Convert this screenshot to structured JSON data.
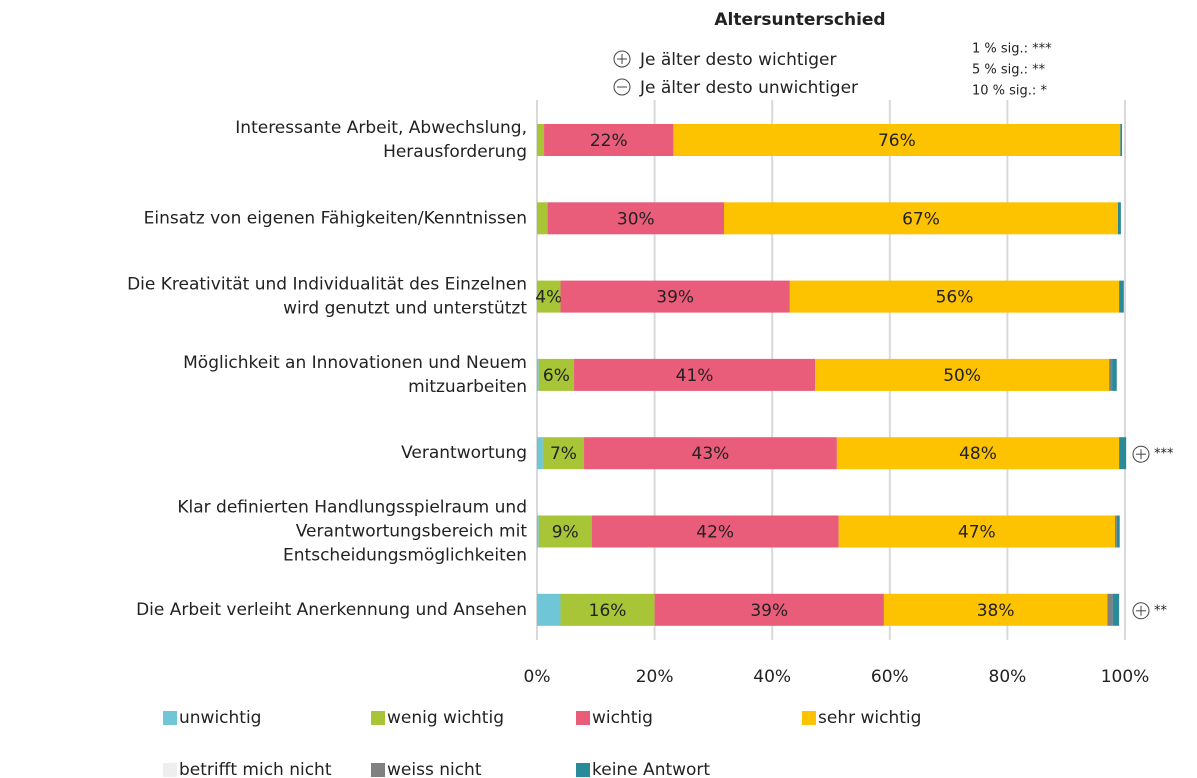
{
  "chart_data": {
    "type": "stacked_bar_horizontal",
    "title": "Altersunterschied",
    "annotations": {
      "plus": "Je älter desto wichtiger",
      "minus": "Je älter desto unwichtiger",
      "sig": [
        "1  % sig.: ***",
        "5  % sig.: **",
        "10 % sig.: *"
      ]
    },
    "categories": [
      [
        "Interessante Arbeit, Abwechslung,",
        "Herausforderung"
      ],
      [
        "Einsatz von eigenen Fähigkeiten/Kenntnissen"
      ],
      [
        "Die Kreativität und Individualität des Einzelnen",
        "wird genutzt und unterstützt"
      ],
      [
        "Möglichkeit an Innovationen und Neuem",
        "mitzuarbeiten"
      ],
      [
        "Verantwortung"
      ],
      [
        "Klar definierten Handlungsspielraum und",
        "Verantwortungsbereich mit",
        "Entscheidungsmöglichkeiten"
      ],
      [
        "Die Arbeit verleiht Anerkennung und Ansehen"
      ]
    ],
    "significance": [
      null,
      null,
      null,
      null,
      "***",
      null,
      "**"
    ],
    "series": [
      {
        "name": "unwichtig",
        "color": "#6ec6d6",
        "values": [
          0,
          0,
          0,
          0.3,
          1,
          0.3,
          4
        ],
        "value_labels": [
          null,
          null,
          null,
          null,
          null,
          null,
          null
        ]
      },
      {
        "name": "wenig wichtig",
        "color": "#a7c536",
        "values": [
          1.2,
          1.8,
          4,
          6,
          7,
          9,
          16
        ],
        "value_labels": [
          null,
          null,
          "4%",
          "6%",
          "7%",
          "9%",
          "16%"
        ]
      },
      {
        "name": "wichtig",
        "color": "#e95c7a",
        "values": [
          22,
          30,
          39,
          41,
          43,
          42,
          39
        ],
        "value_labels": [
          "22%",
          "30%",
          "39%",
          "41%",
          "43%",
          "42%",
          "39%"
        ]
      },
      {
        "name": "sehr wichtig",
        "color": "#fdc200",
        "values": [
          76,
          67,
          56,
          50,
          48,
          47,
          38
        ],
        "value_labels": [
          "76%",
          "67%",
          "56%",
          "50%",
          "48%",
          "47%",
          "38%"
        ]
      },
      {
        "name": "betrifft mich nicht",
        "color": "#eeeeee",
        "values": [
          0,
          0,
          0,
          0,
          0,
          0,
          0
        ],
        "value_labels": [
          null,
          null,
          null,
          null,
          null,
          null,
          null
        ]
      },
      {
        "name": "weiss nicht",
        "color": "#808080",
        "values": [
          0,
          0,
          0,
          0.5,
          0,
          0.3,
          0.9
        ],
        "value_labels": [
          null,
          null,
          null,
          null,
          null,
          null,
          null
        ]
      },
      {
        "name": "keine Antwort",
        "color": "#2b8a99",
        "values": [
          0.3,
          0.5,
          0.8,
          0.8,
          1.2,
          0.5,
          1.1
        ],
        "value_labels": [
          null,
          null,
          null,
          null,
          null,
          null,
          null
        ]
      }
    ],
    "xlim": [
      0,
      100
    ],
    "xticks": [
      {
        "value": 0,
        "label": "0%"
      },
      {
        "value": 20,
        "label": "20%"
      },
      {
        "value": 40,
        "label": "40%"
      },
      {
        "value": 60,
        "label": "60%"
      },
      {
        "value": 80,
        "label": "80%"
      },
      {
        "value": 100,
        "label": "100%"
      }
    ],
    "grid": true
  }
}
